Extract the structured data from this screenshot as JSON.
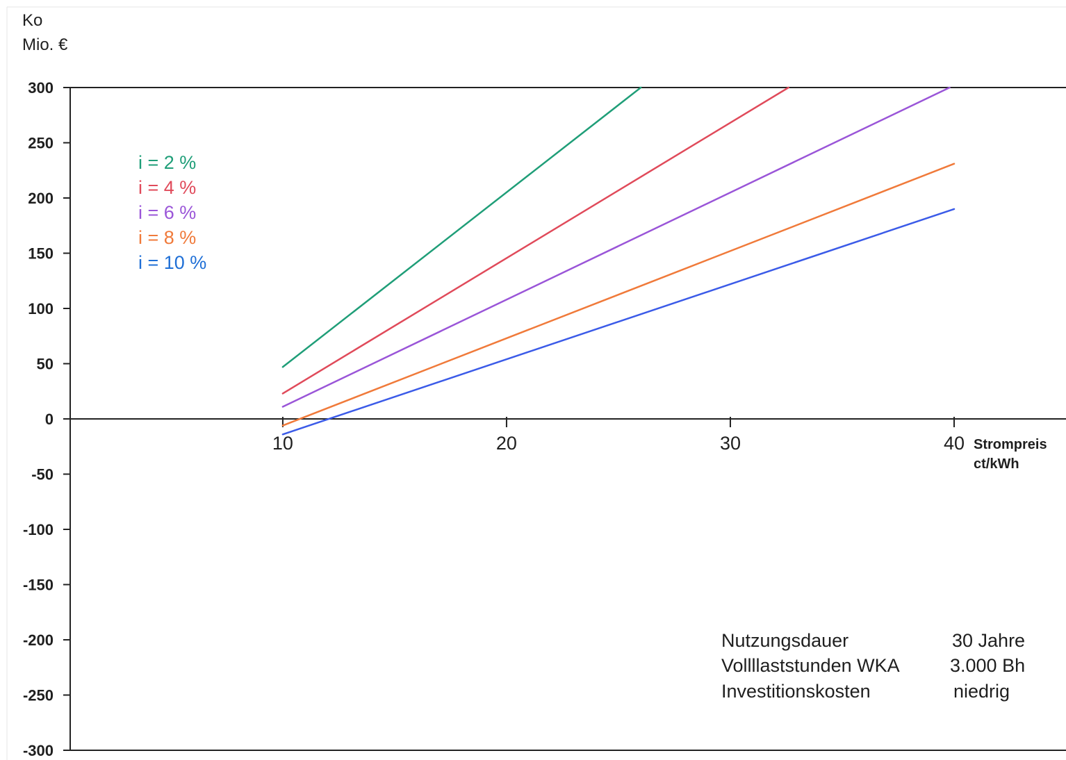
{
  "chart_data": {
    "type": "line",
    "ylabel_lines": [
      "Ko",
      "Mio. €"
    ],
    "xlabel_lines": [
      "Strompreis",
      "ct/kWh"
    ],
    "xlim": [
      0.5,
      45
    ],
    "ylim": [
      -300,
      300
    ],
    "xticks": [
      10,
      20,
      30,
      40
    ],
    "xtick_labels": [
      "10",
      "20",
      "30",
      "40"
    ],
    "yticks": [
      300,
      250,
      200,
      150,
      100,
      50,
      0,
      -50,
      -100,
      -150,
      -200,
      -250,
      -300
    ],
    "ytick_labels": [
      "300",
      "250",
      "200",
      "150",
      "100",
      "50",
      "0",
      "-50",
      "-100",
      "-150",
      "-200",
      "-250",
      "-300"
    ],
    "grid": false,
    "legend_position": "top-left",
    "series": [
      {
        "name": "i = 2 %",
        "color": "#1f9e78",
        "x": [
          10,
          26.0
        ],
        "y": [
          47,
          300
        ]
      },
      {
        "name": "i = 4 %",
        "color": "#e04a5a",
        "x": [
          10,
          32.6
        ],
        "y": [
          23,
          300
        ]
      },
      {
        "name": "i = 6 %",
        "color": "#9a55d8",
        "x": [
          10,
          39.8
        ],
        "y": [
          11,
          300
        ]
      },
      {
        "name": "i = 8 %",
        "color": "#f07a3a",
        "x": [
          10,
          40
        ],
        "y": [
          -6,
          231
        ]
      },
      {
        "name": "i = 10 %",
        "color": "#3b5be8",
        "x": [
          10,
          40
        ],
        "y": [
          -14,
          190
        ]
      }
    ],
    "annotation": {
      "rows": [
        {
          "label": "Nutzungsdauer",
          "value": "30 Jahre"
        },
        {
          "label": "Vollllaststunden WKA",
          "value": "3.000 Bh"
        },
        {
          "label": "Investitionskosten",
          "value": "niedrig"
        }
      ]
    }
  }
}
